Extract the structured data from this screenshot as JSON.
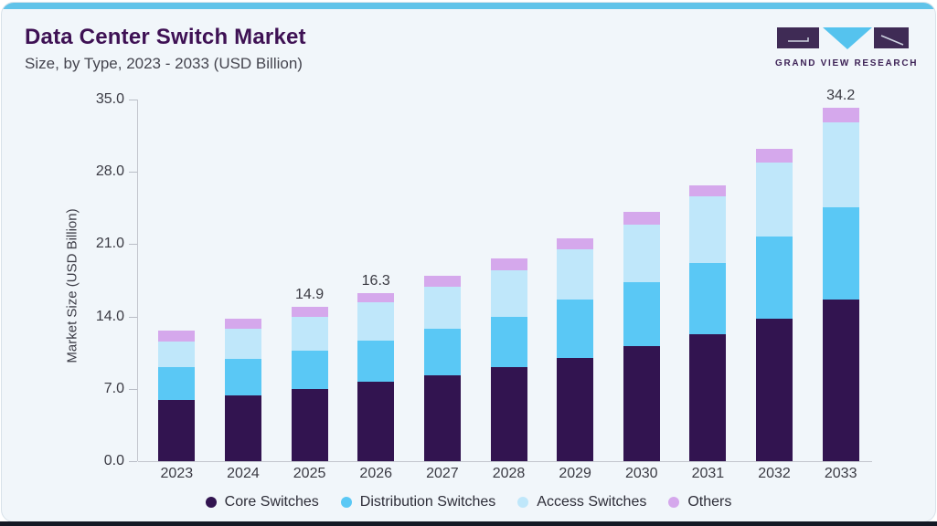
{
  "header": {
    "title": "Data Center Switch Market",
    "subtitle": "Size, by Type, 2023 - 2033 (USD Billion)",
    "logo_text": "GRAND VIEW RESEARCH"
  },
  "colors": {
    "card_background": "#f1f6fa",
    "top_accent_bar": "#60c3e9",
    "card_border": "#d8e2ea",
    "bottom_strip": "#141824",
    "title_text": "#3e1154",
    "subtitle_text": "#45454f",
    "axis_text": "#3a3a43",
    "axis_line": "#c3c6cd",
    "logo_purple": "#3f2b55",
    "logo_blue": "#55c3ee"
  },
  "chart_data": {
    "type": "bar",
    "stacked": true,
    "title": "Data Center Switch Market Size, by Type, 2023 - 2033 (USD Billion)",
    "xlabel": "",
    "ylabel": "Market Size (USD Billion)",
    "ylim": [
      0,
      35
    ],
    "yticks": [
      "35.0",
      "28.0",
      "21.0",
      "14.0",
      "7.0",
      "0.0"
    ],
    "grid": false,
    "legend_position": "bottom",
    "categories": [
      "2023",
      "2024",
      "2025",
      "2026",
      "2027",
      "2028",
      "2029",
      "2030",
      "2031",
      "2032",
      "2033"
    ],
    "series": [
      {
        "name": "Core Switches",
        "color": "#321450",
        "values": [
          5.9,
          6.4,
          7.0,
          7.7,
          8.3,
          9.1,
          10.0,
          11.1,
          12.3,
          13.8,
          15.6
        ]
      },
      {
        "name": "Distribution Switches",
        "color": "#5ac8f5",
        "values": [
          3.2,
          3.5,
          3.7,
          4.0,
          4.5,
          4.9,
          5.6,
          6.2,
          6.9,
          7.9,
          9.0
        ]
      },
      {
        "name": "Access Switches",
        "color": "#bfe7fa",
        "values": [
          2.5,
          2.9,
          3.3,
          3.7,
          4.1,
          4.5,
          4.9,
          5.6,
          6.4,
          7.2,
          8.2
        ]
      },
      {
        "name": "Others",
        "color": "#d5a8ec",
        "values": [
          1.0,
          1.0,
          0.9,
          0.9,
          1.0,
          1.1,
          1.1,
          1.2,
          1.1,
          1.3,
          1.4
        ]
      }
    ],
    "totals": [
      12.6,
      13.8,
      14.9,
      16.3,
      17.9,
      19.6,
      21.6,
      24.1,
      26.7,
      30.2,
      34.2
    ],
    "value_labels": [
      null,
      null,
      "14.9",
      "16.3",
      null,
      null,
      null,
      null,
      null,
      null,
      "34.2"
    ]
  }
}
